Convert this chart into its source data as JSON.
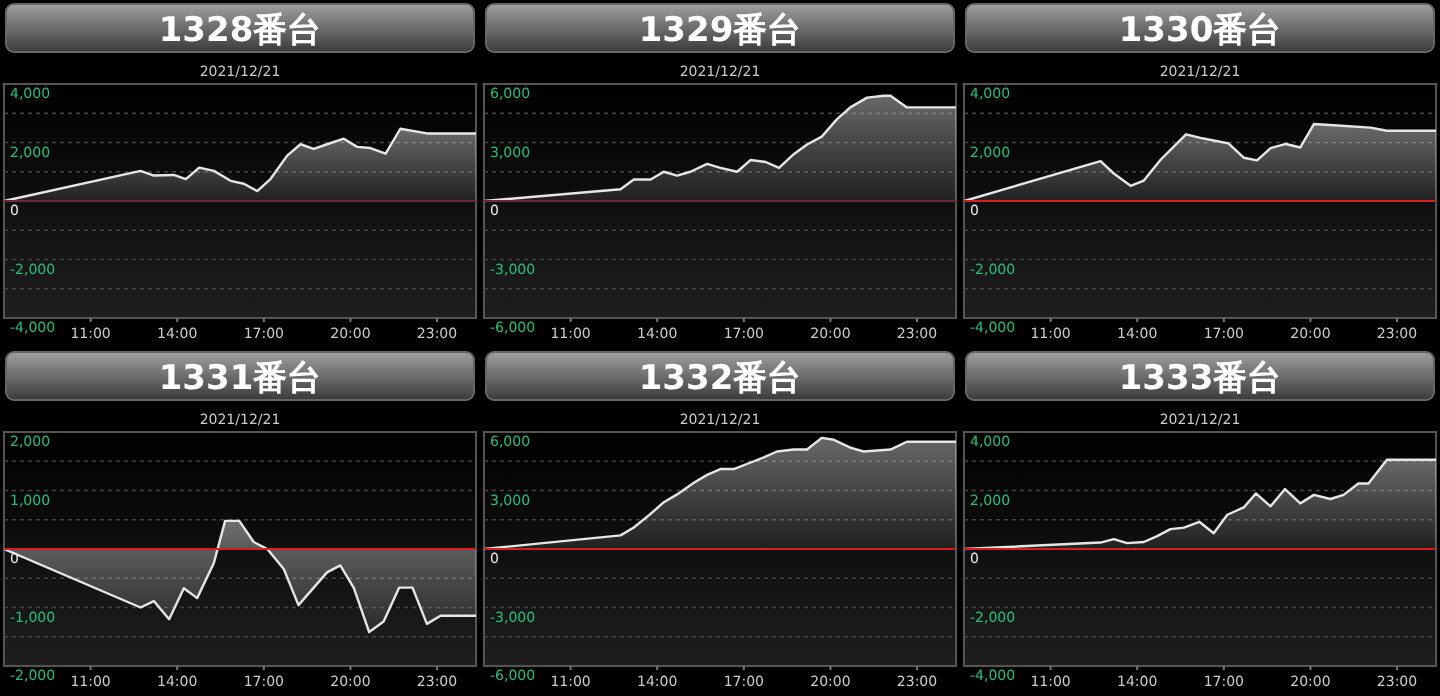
{
  "chart_data": [
    {
      "type": "area",
      "title": "1328番台",
      "subtitle": "2021/12/21",
      "x": [
        8,
        12.73,
        13.19,
        13.88,
        14.3,
        14.76,
        15.27,
        15.85,
        16.31,
        16.77,
        17.23,
        17.81,
        18.27,
        18.73,
        19.19,
        19.77,
        20.23,
        20.69,
        21.22,
        21.73,
        22.65,
        24.35
      ],
      "series": [
        {
          "color": "#e6e6e6",
          "values": [
            0,
            1030,
            870,
            890,
            750,
            1140,
            1030,
            690,
            590,
            340,
            750,
            1550,
            1940,
            1780,
            1940,
            2130,
            1850,
            1810,
            1620,
            2470,
            2310,
            2310
          ]
        }
      ],
      "xlim": [
        8,
        24.35
      ],
      "ylim": [
        -4000,
        4000
      ],
      "xticks": [
        {
          "value": 11,
          "label": "11:00"
        },
        {
          "value": 14,
          "label": "14:00"
        },
        {
          "value": 17,
          "label": "17:00"
        },
        {
          "value": 20,
          "label": "20:00"
        },
        {
          "value": 23,
          "label": "23:00"
        }
      ],
      "yticks": [
        {
          "value": -4000,
          "label": "-4,000"
        },
        {
          "value": -3000,
          "label": null
        },
        {
          "value": -2000,
          "label": "-2,000"
        },
        {
          "value": -1000,
          "label": null
        },
        {
          "value": 0,
          "label": "0"
        },
        {
          "value": 1000,
          "label": null
        },
        {
          "value": 2000,
          "label": "2,000"
        },
        {
          "value": 3000,
          "label": null
        },
        {
          "value": 4000,
          "label": "4,000"
        }
      ],
      "grid": "y",
      "ref_lines": [
        {
          "axis": "y",
          "value": 0,
          "label": null,
          "color": "#6e2a2a"
        }
      ]
    },
    {
      "type": "area",
      "title": "1329番台",
      "subtitle": "2021/12/21",
      "x": [
        8,
        12.73,
        13.19,
        13.77,
        14.23,
        14.69,
        15.15,
        15.73,
        16.19,
        16.77,
        17.23,
        17.76,
        18.22,
        18.73,
        19.19,
        19.7,
        20.23,
        20.69,
        21.27,
        21.85,
        22.08,
        22.65,
        24.35
      ],
      "series": [
        {
          "color": "#e6e6e6",
          "values": [
            0,
            600,
            1100,
            1100,
            1500,
            1300,
            1500,
            1900,
            1700,
            1500,
            2100,
            2000,
            1700,
            2400,
            2900,
            3300,
            4200,
            4800,
            5300,
            5400,
            5400,
            4800,
            4800
          ]
        }
      ],
      "xlim": [
        8,
        24.35
      ],
      "ylim": [
        -6000,
        6000
      ],
      "xticks": [
        {
          "value": 11,
          "label": "11:00"
        },
        {
          "value": 14,
          "label": "14:00"
        },
        {
          "value": 17,
          "label": "17:00"
        },
        {
          "value": 20,
          "label": "20:00"
        },
        {
          "value": 23,
          "label": "23:00"
        }
      ],
      "yticks": [
        {
          "value": -6000,
          "label": "-6,000"
        },
        {
          "value": -4500,
          "label": null
        },
        {
          "value": -3000,
          "label": "-3,000"
        },
        {
          "value": -1500,
          "label": null
        },
        {
          "value": 0,
          "label": "0"
        },
        {
          "value": 1500,
          "label": null
        },
        {
          "value": 3000,
          "label": "3,000"
        },
        {
          "value": 4500,
          "label": null
        },
        {
          "value": 6000,
          "label": "6,000"
        }
      ],
      "grid": "y",
      "ref_lines": [
        {
          "axis": "y",
          "value": 0,
          "label": null,
          "color": "#6e2a2a"
        }
      ]
    },
    {
      "type": "area",
      "title": "1330番台",
      "subtitle": "2021/12/21",
      "x": [
        8,
        12.73,
        13.19,
        13.77,
        14.23,
        14.81,
        15.69,
        16.19,
        16.65,
        17.16,
        17.69,
        18.15,
        18.62,
        19.15,
        19.65,
        20.12,
        20.81,
        22.08,
        22.65,
        24.35
      ],
      "series": [
        {
          "color": "#e6e6e6",
          "values": [
            0,
            1360,
            940,
            520,
            700,
            1410,
            2280,
            2160,
            2070,
            1970,
            1480,
            1390,
            1810,
            1950,
            1830,
            2630,
            2590,
            2510,
            2400,
            2400
          ]
        }
      ],
      "xlim": [
        8,
        24.35
      ],
      "ylim": [
        -4000,
        4000
      ],
      "xticks": [
        {
          "value": 11,
          "label": "11:00"
        },
        {
          "value": 14,
          "label": "14:00"
        },
        {
          "value": 17,
          "label": "17:00"
        },
        {
          "value": 20,
          "label": "20:00"
        },
        {
          "value": 23,
          "label": "23:00"
        }
      ],
      "yticks": [
        {
          "value": -4000,
          "label": "-4,000"
        },
        {
          "value": -3000,
          "label": null
        },
        {
          "value": -2000,
          "label": "-2,000"
        },
        {
          "value": -1000,
          "label": null
        },
        {
          "value": 0,
          "label": "0"
        },
        {
          "value": 1000,
          "label": null
        },
        {
          "value": 2000,
          "label": "2,000"
        },
        {
          "value": 3000,
          "label": null
        },
        {
          "value": 4000,
          "label": "4,000"
        }
      ],
      "grid": "y",
      "ref_lines": [
        {
          "axis": "y",
          "value": 0,
          "label": null,
          "color": "#d42020"
        }
      ]
    },
    {
      "type": "area",
      "title": "1331番台",
      "subtitle": "2021/12/21",
      "x": [
        8,
        12.73,
        13.19,
        13.72,
        14.23,
        14.69,
        15.27,
        15.66,
        16.15,
        16.65,
        17.12,
        17.69,
        18.2,
        18.73,
        19.19,
        19.65,
        20.12,
        20.65,
        21.15,
        21.69,
        22.15,
        22.65,
        23.12,
        24.35
      ],
      "series": [
        {
          "color": "#e6e6e6",
          "values": [
            0,
            -1000,
            -890,
            -1200,
            -670,
            -840,
            -240,
            480,
            480,
            120,
            0,
            -340,
            -960,
            -660,
            -400,
            -280,
            -670,
            -1420,
            -1240,
            -660,
            -660,
            -1280,
            -1140,
            -1140
          ]
        }
      ],
      "xlim": [
        8,
        24.35
      ],
      "ylim": [
        -2000,
        2000
      ],
      "xticks": [
        {
          "value": 11,
          "label": "11:00"
        },
        {
          "value": 14,
          "label": "14:00"
        },
        {
          "value": 17,
          "label": "17:00"
        },
        {
          "value": 20,
          "label": "20:00"
        },
        {
          "value": 23,
          "label": "23:00"
        }
      ],
      "yticks": [
        {
          "value": -2000,
          "label": "-2,000"
        },
        {
          "value": -1500,
          "label": null
        },
        {
          "value": -1000,
          "label": "-1,000"
        },
        {
          "value": -500,
          "label": null
        },
        {
          "value": 0,
          "label": "0"
        },
        {
          "value": 500,
          "label": null
        },
        {
          "value": 1000,
          "label": "1,000"
        },
        {
          "value": 1500,
          "label": null
        },
        {
          "value": 2000,
          "label": "2,000"
        }
      ],
      "grid": "y",
      "ref_lines": [
        {
          "axis": "y",
          "value": 0,
          "label": null,
          "color": "#d42020"
        }
      ]
    },
    {
      "type": "area",
      "title": "1332番台",
      "subtitle": "2021/12/21",
      "x": [
        8,
        12.73,
        13.19,
        13.77,
        14.23,
        14.69,
        15.27,
        15.73,
        16.19,
        16.65,
        17.35,
        17.69,
        18.15,
        18.73,
        19.19,
        19.7,
        20.12,
        20.69,
        21.15,
        22.08,
        22.65,
        24.35
      ],
      "series": [
        {
          "color": "#e6e6e6",
          "values": [
            0,
            700,
            1100,
            1800,
            2400,
            2800,
            3400,
            3800,
            4100,
            4100,
            4500,
            4700,
            5000,
            5100,
            5100,
            5700,
            5600,
            5200,
            5000,
            5100,
            5500,
            5500
          ]
        }
      ],
      "xlim": [
        8,
        24.35
      ],
      "ylim": [
        -6000,
        6000
      ],
      "xticks": [
        {
          "value": 11,
          "label": "11:00"
        },
        {
          "value": 14,
          "label": "14:00"
        },
        {
          "value": 17,
          "label": "17:00"
        },
        {
          "value": 20,
          "label": "20:00"
        },
        {
          "value": 23,
          "label": "23:00"
        }
      ],
      "yticks": [
        {
          "value": -6000,
          "label": "-6,000"
        },
        {
          "value": -4500,
          "label": null
        },
        {
          "value": -3000,
          "label": "-3,000"
        },
        {
          "value": -1500,
          "label": null
        },
        {
          "value": 0,
          "label": "0"
        },
        {
          "value": 1500,
          "label": null
        },
        {
          "value": 3000,
          "label": "3,000"
        },
        {
          "value": 4500,
          "label": null
        },
        {
          "value": 6000,
          "label": "6,000"
        }
      ],
      "grid": "y",
      "ref_lines": [
        {
          "axis": "y",
          "value": 0,
          "label": null,
          "color": "#d42020"
        }
      ]
    },
    {
      "type": "area",
      "title": "1333番台",
      "subtitle": "2021/12/21",
      "x": [
        8,
        12.73,
        13.19,
        13.65,
        14.23,
        14.69,
        15.15,
        15.62,
        16.15,
        16.65,
        17.12,
        17.69,
        18.11,
        18.62,
        19.12,
        19.65,
        20.12,
        20.69,
        21.15,
        21.66,
        22.01,
        22.65,
        24.35
      ],
      "series": [
        {
          "color": "#e6e6e6",
          "values": [
            0,
            220,
            340,
            200,
            240,
            440,
            680,
            730,
            930,
            540,
            1170,
            1420,
            1900,
            1460,
            2050,
            1560,
            1850,
            1710,
            1850,
            2240,
            2240,
            3050,
            3050
          ]
        }
      ],
      "xlim": [
        8,
        24.35
      ],
      "ylim": [
        -4000,
        4000
      ],
      "xticks": [
        {
          "value": 11,
          "label": "11:00"
        },
        {
          "value": 14,
          "label": "14:00"
        },
        {
          "value": 17,
          "label": "17:00"
        },
        {
          "value": 20,
          "label": "20:00"
        },
        {
          "value": 23,
          "label": "23:00"
        }
      ],
      "yticks": [
        {
          "value": -4000,
          "label": "-4,000"
        },
        {
          "value": -3000,
          "label": null
        },
        {
          "value": -2000,
          "label": "-2,000"
        },
        {
          "value": -1000,
          "label": null
        },
        {
          "value": 0,
          "label": "0"
        },
        {
          "value": 1000,
          "label": null
        },
        {
          "value": 2000,
          "label": "2,000"
        },
        {
          "value": 3000,
          "label": null
        },
        {
          "value": 4000,
          "label": "4,000"
        }
      ],
      "grid": "y",
      "ref_lines": [
        {
          "axis": "y",
          "value": 0,
          "label": null,
          "color": "#d42020"
        }
      ]
    }
  ]
}
